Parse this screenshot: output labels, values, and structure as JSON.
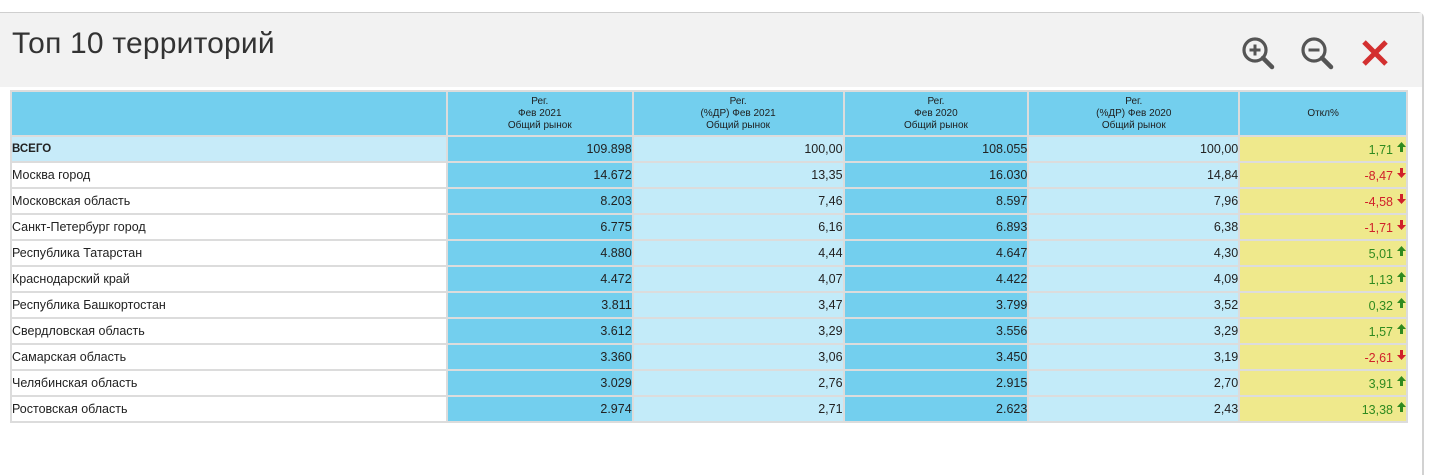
{
  "header": {
    "title": "Топ 10 территорий"
  },
  "toolbar": {
    "zoom_in_icon": "zoom-in-icon",
    "zoom_out_icon": "zoom-out-icon",
    "close_icon": "close-icon",
    "close_color": "#d33030",
    "zoom_color": "#555555"
  },
  "table": {
    "columns": [
      {
        "lines": [
          ""
        ]
      },
      {
        "lines": [
          "Рег.",
          "Фев 2021",
          "Общий рынок"
        ]
      },
      {
        "lines": [
          "Рег.",
          "(%ДР) Фев 2021",
          "Общий рынок"
        ]
      },
      {
        "lines": [
          "Рег.",
          "Фев 2020",
          "Общий рынок"
        ]
      },
      {
        "lines": [
          "Рег.",
          "(%ДР) Фев 2020",
          "Общий рынок"
        ]
      },
      {
        "lines": [
          "Откл%"
        ]
      }
    ],
    "rows": [
      {
        "name": "ВСЕГО",
        "v2021": "109.898",
        "p2021": "100,00",
        "v2020": "108.055",
        "p2020": "100,00",
        "dev": "1,71",
        "trend": "up"
      },
      {
        "name": "Москва город",
        "v2021": "14.672",
        "p2021": "13,35",
        "v2020": "16.030",
        "p2020": "14,84",
        "dev": "-8,47",
        "trend": "down"
      },
      {
        "name": "Московская область",
        "v2021": "8.203",
        "p2021": "7,46",
        "v2020": "8.597",
        "p2020": "7,96",
        "dev": "-4,58",
        "trend": "down"
      },
      {
        "name": "Санкт-Петербург город",
        "v2021": "6.775",
        "p2021": "6,16",
        "v2020": "6.893",
        "p2020": "6,38",
        "dev": "-1,71",
        "trend": "down"
      },
      {
        "name": "Республика Татарстан",
        "v2021": "4.880",
        "p2021": "4,44",
        "v2020": "4.647",
        "p2020": "4,30",
        "dev": "5,01",
        "trend": "up"
      },
      {
        "name": "Краснодарский край",
        "v2021": "4.472",
        "p2021": "4,07",
        "v2020": "4.422",
        "p2020": "4,09",
        "dev": "1,13",
        "trend": "up"
      },
      {
        "name": "Республика Башкортостан",
        "v2021": "3.811",
        "p2021": "3,47",
        "v2020": "3.799",
        "p2020": "3,52",
        "dev": "0,32",
        "trend": "up"
      },
      {
        "name": "Свердловская область",
        "v2021": "3.612",
        "p2021": "3,29",
        "v2020": "3.556",
        "p2020": "3,29",
        "dev": "1,57",
        "trend": "up"
      },
      {
        "name": "Самарская область",
        "v2021": "3.360",
        "p2021": "3,06",
        "v2020": "3.450",
        "p2020": "3,19",
        "dev": "-2,61",
        "trend": "down"
      },
      {
        "name": "Челябинская область",
        "v2021": "3.029",
        "p2021": "2,76",
        "v2020": "2.915",
        "p2020": "2,70",
        "dev": "3,91",
        "trend": "up"
      },
      {
        "name": "Ростовская область",
        "v2021": "2.974",
        "p2021": "2,71",
        "v2020": "2.623",
        "p2020": "2,43",
        "dev": "13,38",
        "trend": "up"
      }
    ]
  }
}
